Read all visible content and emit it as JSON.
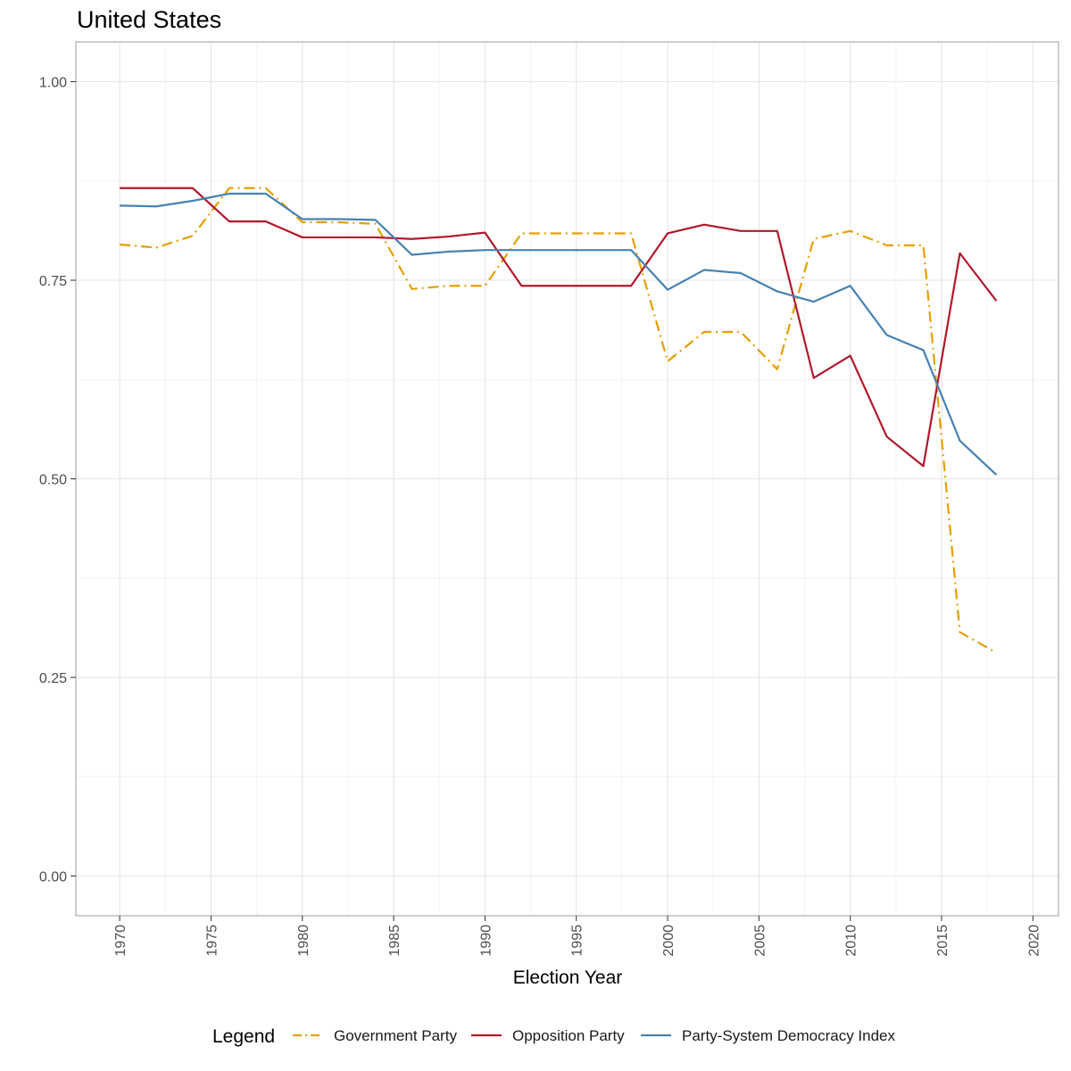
{
  "chart_data": {
    "type": "line",
    "title": "United States",
    "xlabel": "Election Year",
    "ylabel": "",
    "xlim": [
      1967.6,
      1921.4
    ],
    "ylim": [
      -0.05,
      1.05
    ],
    "x_ticks": [
      "1970",
      "1975",
      "1980",
      "1985",
      "1990",
      "1995",
      "2000",
      "2005",
      "2010",
      "2015",
      "2020"
    ],
    "y_ticks": [
      "0.00",
      "0.25",
      "0.50",
      "0.75",
      "1.00"
    ],
    "legend": {
      "title": "Legend",
      "position": "bottom"
    },
    "grid": true,
    "x": [
      1970,
      1972,
      1974,
      1976,
      1978,
      1980,
      1982,
      1984,
      1986,
      1988,
      1990,
      1992,
      1994,
      1996,
      1998,
      2000,
      2002,
      2004,
      2006,
      2008,
      2010,
      2012,
      2014,
      2016,
      2018
    ],
    "series": [
      {
        "name": "Government Party",
        "color": "#E69F00",
        "dash": "dotdash",
        "values": [
          0.795,
          0.791,
          0.806,
          0.866,
          0.866,
          0.823,
          0.823,
          0.821,
          0.739,
          0.743,
          0.743,
          0.809,
          0.809,
          0.809,
          0.809,
          0.648,
          0.685,
          0.685,
          0.638,
          0.802,
          0.812,
          0.794,
          0.794,
          0.307,
          0.281
        ]
      },
      {
        "name": "Opposition Party",
        "color": "#B2182B",
        "dash": "solid",
        "values": [
          0.866,
          0.866,
          0.866,
          0.824,
          0.824,
          0.804,
          0.804,
          0.804,
          0.802,
          0.805,
          0.81,
          0.743,
          0.743,
          0.743,
          0.743,
          0.809,
          0.82,
          0.812,
          0.812,
          0.627,
          0.655,
          0.553,
          0.516,
          0.784,
          0.724
        ]
      },
      {
        "name": "Party-System Democracy Index",
        "color": "#4682B4",
        "dash": "solid",
        "values": [
          0.844,
          0.843,
          0.85,
          0.859,
          0.859,
          0.827,
          0.827,
          0.826,
          0.782,
          0.786,
          0.788,
          0.788,
          0.788,
          0.788,
          0.788,
          0.738,
          0.763,
          0.759,
          0.736,
          0.723,
          0.743,
          0.681,
          0.662,
          0.548,
          0.505
        ]
      }
    ]
  }
}
